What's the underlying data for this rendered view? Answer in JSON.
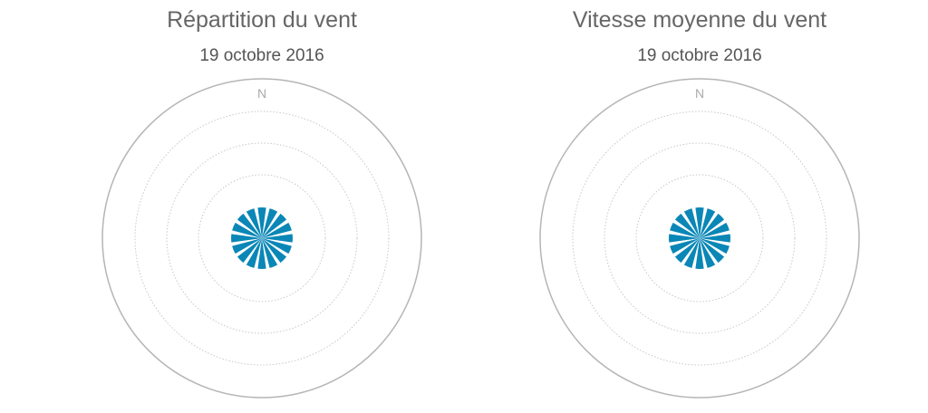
{
  "chart_data": [
    {
      "type": "polar-bar",
      "title": "Répartition du vent",
      "subtitle": "19 octobre 2016",
      "direction_label": "N",
      "directions": 16,
      "values": [
        1,
        1,
        1,
        1,
        1,
        1,
        1,
        1,
        1,
        1,
        1,
        1,
        1,
        1,
        1,
        1
      ],
      "color": "#0a87b6"
    },
    {
      "type": "polar-bar",
      "title": "Vitesse moyenne du vent",
      "subtitle": "19 octobre 2016",
      "direction_label": "N",
      "directions": 16,
      "values": [
        1,
        1,
        1,
        1,
        1,
        1,
        1,
        1,
        1,
        1,
        1,
        1,
        1,
        1,
        1,
        1
      ],
      "color": "#0a87b6"
    }
  ]
}
